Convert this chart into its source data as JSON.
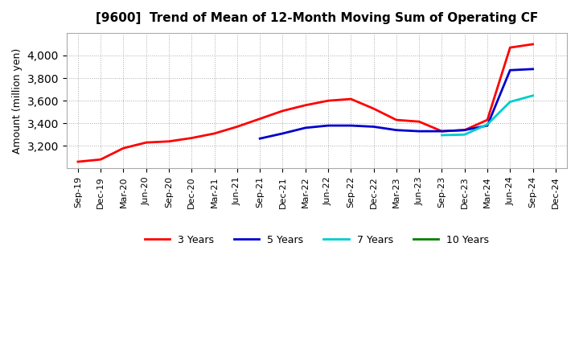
{
  "title": "[9600]  Trend of Mean of 12-Month Moving Sum of Operating CF",
  "ylabel": "Amount (million yen)",
  "background_color": "#ffffff",
  "grid_color": "#aaaaaa",
  "x_labels": [
    "Sep-19",
    "Dec-19",
    "Mar-20",
    "Jun-20",
    "Sep-20",
    "Dec-20",
    "Mar-21",
    "Jun-21",
    "Sep-21",
    "Dec-21",
    "Mar-22",
    "Jun-22",
    "Sep-22",
    "Dec-22",
    "Mar-23",
    "Jun-23",
    "Sep-23",
    "Dec-23",
    "Mar-24",
    "Jun-24",
    "Sep-24",
    "Dec-24"
  ],
  "series": {
    "3 Years": {
      "color": "#ff0000",
      "data_x": [
        0,
        1,
        2,
        3,
        4,
        5,
        6,
        7,
        8,
        9,
        10,
        11,
        12,
        13,
        14,
        15,
        16,
        17,
        18,
        19,
        20
      ],
      "data_y": [
        3060,
        3080,
        3180,
        3230,
        3240,
        3270,
        3310,
        3370,
        3440,
        3510,
        3560,
        3600,
        3615,
        3530,
        3430,
        3415,
        3330,
        3340,
        3430,
        4070,
        4100
      ]
    },
    "5 Years": {
      "color": "#0000cc",
      "data_x": [
        8,
        9,
        10,
        11,
        12,
        13,
        14,
        15,
        16,
        17,
        18,
        19,
        20
      ],
      "data_y": [
        3265,
        3310,
        3360,
        3380,
        3380,
        3370,
        3340,
        3330,
        3330,
        3340,
        3380,
        3870,
        3880
      ]
    },
    "7 Years": {
      "color": "#00cccc",
      "data_x": [
        16,
        17,
        18,
        19,
        20
      ],
      "data_y": [
        3295,
        3300,
        3390,
        3590,
        3645
      ]
    },
    "10 Years": {
      "color": "#008000",
      "data_x": [],
      "data_y": []
    }
  },
  "ylim": [
    3000,
    4200
  ],
  "yticks": [
    3200,
    3400,
    3600,
    3800,
    4000
  ],
  "legend_entries": [
    "3 Years",
    "5 Years",
    "7 Years",
    "10 Years"
  ],
  "legend_colors": [
    "#ff0000",
    "#0000cc",
    "#00cccc",
    "#008000"
  ]
}
